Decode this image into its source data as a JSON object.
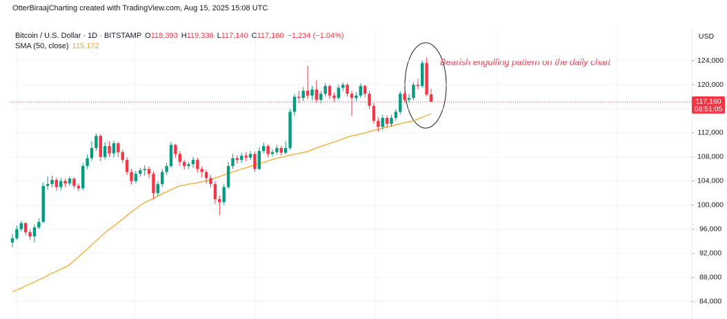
{
  "chart_data": {
    "type": "candlestick",
    "credit": "OtterBiraajCharting created with TradingView.com, Aug 15, 2025 15:08 UTC",
    "title": "Bitcoin / U.S. Dollar · 1D · BITSTAMP",
    "ohlc_header": [
      {
        "key": "O",
        "value": "118,393"
      },
      {
        "key": "H",
        "value": "119,336"
      },
      {
        "key": "L",
        "value": "117,140"
      },
      {
        "key": "C",
        "value": "117,160"
      }
    ],
    "change": "−1,234 (−1.04%)",
    "currency": "USD",
    "up_color": "#089981",
    "down_color": "#f23645",
    "open": [
      93800,
      94500,
      96000,
      97000,
      95500,
      94800,
      96300,
      97200,
      103200,
      103500,
      104200,
      103000,
      104000,
      103600,
      104400,
      103200,
      102800,
      106500,
      107800,
      109500,
      111500,
      108000,
      109800,
      108600,
      110300,
      108800,
      107500,
      105500,
      104000,
      105200,
      105800,
      106000,
      105200,
      102000,
      103500,
      105500,
      106500,
      110000,
      108500,
      107200,
      106500,
      106800,
      107500,
      106000,
      105500,
      104500,
      103500,
      101000,
      100500,
      103000,
      106500,
      107800,
      107500,
      108200,
      107900,
      108500,
      106000,
      109000,
      109800,
      108500,
      108800,
      109500,
      108700,
      109500,
      115500,
      118000,
      117800,
      119000,
      118200,
      119200,
      117500,
      118500,
      119800,
      118200,
      117800,
      119500,
      120000,
      118500,
      117800,
      118200,
      119800,
      118500,
      116500,
      114000,
      113000,
      114500,
      113500,
      114500,
      115500,
      118500,
      117500,
      117800,
      120000,
      119800,
      123600,
      118393
    ],
    "high": [
      95200,
      96600,
      97400,
      97200,
      96000,
      96800,
      97800,
      103800,
      104800,
      104900,
      104600,
      104500,
      104400,
      104800,
      104600,
      103600,
      107000,
      108400,
      110600,
      111900,
      111800,
      110400,
      110600,
      110700,
      110500,
      109200,
      108000,
      106000,
      105700,
      106200,
      106600,
      106400,
      105600,
      104000,
      106000,
      107000,
      110500,
      110200,
      109000,
      107600,
      107200,
      108000,
      107900,
      106400,
      105900,
      105000,
      104000,
      101600,
      103500,
      107200,
      108500,
      108300,
      108700,
      108800,
      109000,
      108900,
      109600,
      110400,
      110100,
      109300,
      110000,
      109900,
      110600,
      116000,
      118500,
      119000,
      119600,
      123200,
      119800,
      120800,
      119000,
      120300,
      120000,
      118700,
      120000,
      120400,
      120300,
      119000,
      118800,
      120200,
      120000,
      119000,
      117000,
      114600,
      115000,
      114900,
      115000,
      116000,
      118900,
      119000,
      118500,
      120400,
      121000,
      124000,
      124500,
      119336
    ],
    "low": [
      93000,
      94200,
      95600,
      95000,
      94200,
      93800,
      96000,
      97000,
      102600,
      102900,
      102400,
      102500,
      103000,
      103200,
      102800,
      102300,
      102500,
      106000,
      107400,
      109000,
      107300,
      107600,
      108000,
      107900,
      108000,
      107000,
      105000,
      103400,
      103600,
      104700,
      104900,
      104500,
      101000,
      101500,
      103000,
      105000,
      106200,
      107900,
      106500,
      105900,
      106000,
      106200,
      105400,
      104600,
      103600,
      102900,
      100200,
      98300,
      100000,
      102700,
      106000,
      106900,
      107000,
      107300,
      107500,
      105500,
      105800,
      108600,
      108000,
      108100,
      108400,
      108200,
      108400,
      109200,
      114800,
      117000,
      117300,
      117600,
      117500,
      117000,
      116900,
      118000,
      117600,
      117200,
      117500,
      118900,
      118000,
      114800,
      117300,
      117800,
      117900,
      116000,
      113500,
      112200,
      112500,
      112800,
      113000,
      114000,
      115100,
      117000,
      117000,
      117400,
      119300,
      119500,
      118100,
      117140
    ],
    "close": [
      94500,
      96000,
      97000,
      95500,
      94800,
      96300,
      97200,
      103200,
      103500,
      104200,
      103000,
      104000,
      103600,
      104400,
      103200,
      102800,
      106500,
      107800,
      109500,
      111500,
      108000,
      109800,
      108600,
      110300,
      108800,
      107500,
      105500,
      104000,
      105200,
      105800,
      106000,
      105200,
      102000,
      103500,
      105500,
      106500,
      110000,
      108500,
      107200,
      106500,
      106800,
      107500,
      106000,
      105500,
      104500,
      103500,
      101000,
      100500,
      103000,
      106500,
      107800,
      107500,
      108200,
      107900,
      108500,
      106000,
      109000,
      109800,
      108500,
      108800,
      109500,
      108700,
      109500,
      115500,
      118000,
      117800,
      119000,
      118200,
      119200,
      117500,
      118500,
      119800,
      118200,
      117800,
      119500,
      120000,
      118500,
      117800,
      118200,
      119800,
      118500,
      116500,
      114000,
      113000,
      114500,
      113500,
      114500,
      115500,
      118500,
      117500,
      117800,
      120000,
      119800,
      123600,
      118400,
      117160
    ],
    "sma": {
      "name": "SMA (50, close)",
      "color": "#f5a623",
      "legend_value": "115,172",
      "values": [
        85600,
        85900,
        86200,
        86600,
        86900,
        87200,
        87600,
        87900,
        88300,
        88700,
        89000,
        89400,
        89700,
        90100,
        90800,
        91400,
        92100,
        92700,
        93400,
        94100,
        94700,
        95400,
        96000,
        96500,
        97100,
        97700,
        98300,
        98900,
        99400,
        100000,
        100400,
        100800,
        101100,
        101500,
        101900,
        102200,
        102600,
        102900,
        103200,
        103300,
        103500,
        103600,
        103700,
        103900,
        104000,
        104250,
        104500,
        104750,
        105000,
        105250,
        105500,
        105750,
        106000,
        106200,
        106450,
        106700,
        106900,
        107100,
        107350,
        107600,
        107800,
        107950,
        108100,
        108300,
        108450,
        108600,
        108750,
        108900,
        109200,
        109500,
        109750,
        110000,
        110250,
        110500,
        110750,
        111000,
        111300,
        111500,
        111650,
        111850,
        112000,
        112200,
        112400,
        112600,
        112800,
        113000,
        113150,
        113350,
        113500,
        113700,
        113850,
        114000,
        114300,
        114600,
        114900,
        115172
      ]
    },
    "ylim": [
      82000,
      129500
    ],
    "yticks": [
      {
        "value": 84000,
        "label": "84,000"
      },
      {
        "value": 88000,
        "label": "88,000"
      },
      {
        "value": 92000,
        "label": "92,000"
      },
      {
        "value": 96000,
        "label": "96,000"
      },
      {
        "value": 100000,
        "label": "100,000"
      },
      {
        "value": 104000,
        "label": "104,000"
      },
      {
        "value": 108000,
        "label": "108,000"
      },
      {
        "value": 112000,
        "label": "112,000"
      },
      {
        "value": 116000,
        "label": "116,000"
      },
      {
        "value": 120000,
        "label": "120,000"
      },
      {
        "value": 124000,
        "label": "124,000"
      }
    ],
    "grid": true,
    "price_tag": "117,160",
    "countdown": "08:51:05",
    "annotation": "Bearish engulfing pattern on the daily chart"
  }
}
